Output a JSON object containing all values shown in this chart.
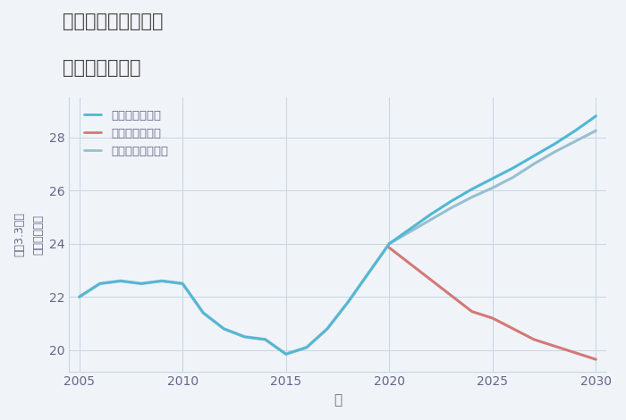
{
  "title_line1": "埼玉県熊谷市西野の",
  "title_line2": "土地の価格推移",
  "xlabel": "年",
  "ylabel": "単価（万円）",
  "ylabel2": "坪（3.3㎡）",
  "background_color": "#f0f4f8",
  "plot_bg_color": "#f0f4f8",
  "grid_color": "#c5d5e5",
  "legend_labels": [
    "グッドシナリオ",
    "バッドシナリオ",
    "ノーマルシナリオ"
  ],
  "good_color": "#4fb8d4",
  "bad_color": "#d47878",
  "normal_color": "#98bfd0",
  "historical_years": [
    2005,
    2006,
    2007,
    2008,
    2009,
    2010,
    2011,
    2012,
    2013,
    2014,
    2015,
    2016,
    2017,
    2018,
    2019,
    2020
  ],
  "historical_values": [
    22.0,
    22.5,
    22.6,
    22.5,
    22.6,
    22.5,
    21.4,
    20.8,
    20.5,
    20.4,
    19.85,
    20.1,
    20.8,
    21.8,
    22.9,
    24.0
  ],
  "forecast_years": [
    2020,
    2021,
    2022,
    2023,
    2024,
    2025,
    2026,
    2027,
    2028,
    2029,
    2030
  ],
  "good_forecast": [
    24.0,
    24.55,
    25.1,
    25.6,
    26.05,
    26.45,
    26.85,
    27.3,
    27.75,
    28.25,
    28.8
  ],
  "bad_forecast": [
    23.85,
    23.25,
    22.65,
    22.05,
    21.45,
    21.2,
    20.8,
    20.4,
    20.15,
    19.9,
    19.65
  ],
  "normal_forecast": [
    24.0,
    24.45,
    24.9,
    25.35,
    25.75,
    26.1,
    26.5,
    27.0,
    27.45,
    27.85,
    28.25
  ],
  "xlim": [
    2004.5,
    2030.5
  ],
  "ylim": [
    19.2,
    29.5
  ],
  "yticks": [
    20,
    22,
    24,
    26,
    28
  ],
  "xticks": [
    2005,
    2010,
    2015,
    2020,
    2025,
    2030
  ],
  "title_color": "#444444",
  "tick_color": "#666688",
  "label_color": "#666688"
}
